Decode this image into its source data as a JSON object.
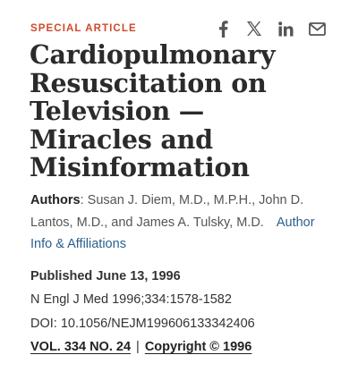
{
  "article": {
    "type_label": "SPECIAL ARTICLE",
    "title": "Cardiopulmonary Resuscitation on Television — Miracles and Misinformation",
    "authors_label": "Authors",
    "authors_text": ": Susan J. Diem, M.D., M.P.H., John D. Lantos, M.D., and James A. Tulsky, M.D.",
    "affiliations_link": "Author Info & Affiliations"
  },
  "share": {
    "icons": [
      "facebook-icon",
      "x-icon",
      "linkedin-icon",
      "email-icon"
    ],
    "icon_color": "#555555"
  },
  "meta": {
    "published_label": "Published",
    "published_date": "June 13, 1996",
    "citation": "N Engl J Med 1996;334:1578-1582",
    "doi": "DOI: 10.1056/NEJM199606133342406",
    "volume_link": "VOL. 334 NO. 24",
    "separator": "|",
    "copyright_link": "Copyright © 1996"
  },
  "colors": {
    "accent": "#cf4a2b",
    "link": "#2a5f8f",
    "title": "#2b2b2b"
  }
}
